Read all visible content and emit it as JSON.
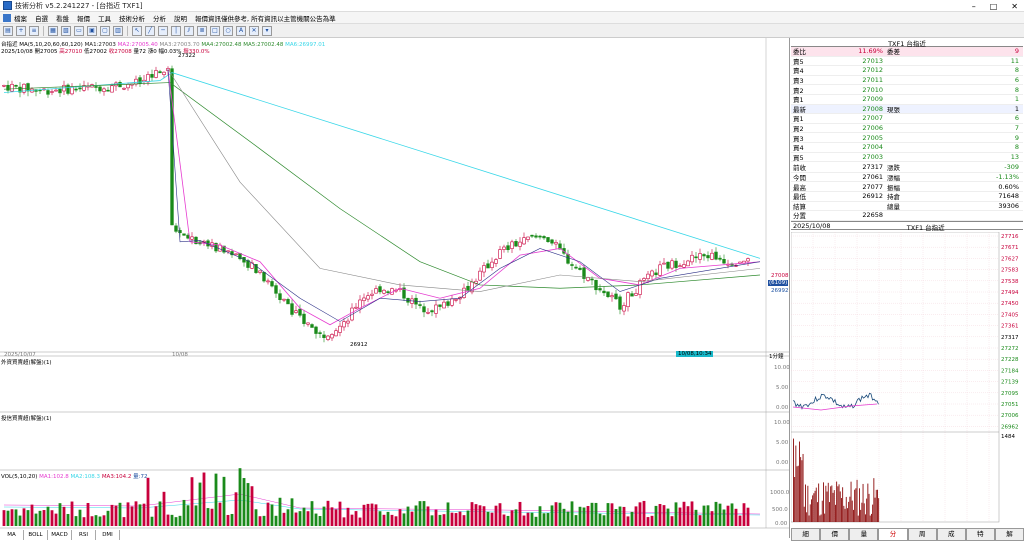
{
  "window": {
    "title": "技術分析 v5.2.241227 - [台指近 TXF1]"
  },
  "menu": [
    "檔案",
    "自選",
    "看盤",
    "報價",
    "工具",
    "技術分析",
    "分析",
    "說明",
    "報價資訊僅供參考, 所有資訊以主管機關公告為準"
  ],
  "main": {
    "ma_header": {
      "name": "台指近",
      "params": "MA(5,10,20,60,60,120)",
      "ma1": "MA1:27003",
      "ma2": "MA2:27005.40",
      "ma3": "MA3:27003.70",
      "ma4": "MA4:27002.48",
      "ma5": "MA5:27002.48",
      "ma6": "MA6:26997.01"
    },
    "ohlc": {
      "date": "2025/10/08",
      "open": "開27005",
      "high": "高27010",
      "low": "低27002",
      "close": "收27008",
      "vol": "量72",
      "change": "漲0",
      "pct": "幅0.03%",
      "amp": "振330.0%"
    },
    "price_max_label": "27322",
    "price_min_label": "26912",
    "last_price_tag": "27008",
    "last_price_diff": "(6109)",
    "last_price_low": "26992",
    "xaxis_left": "2025/10/07",
    "xaxis_mid": "10/08",
    "xaxis_cursor": "10/08,10:34",
    "interval": "1分鐘",
    "panel2_title": "外資買賣超(解盤)(1)",
    "panel2_ticks": [
      "10.00",
      "5.00",
      "0.00"
    ],
    "panel3_title": "投信買賣超(解盤)(1)",
    "panel3_ticks": [
      "10.00",
      "5.00",
      "0.00"
    ],
    "vol_header": {
      "name": "VOL(5,10,20)",
      "ma1": "MA1:102.8",
      "ma2": "MA2:108.3",
      "ma3": "MA3:104.2",
      "vol": "量:72"
    },
    "vol_ticks": [
      "1000.0",
      "500.0",
      "0.00"
    ],
    "tabs": [
      "MA",
      "BOLL",
      "MACD",
      "RSI",
      "DMI"
    ]
  },
  "quote": {
    "title": "TXF1 台指近",
    "ratio": {
      "label": "委比",
      "value": "11.69%",
      "label2": "委差",
      "value2": "9"
    },
    "asks": [
      {
        "label": "賣5",
        "price": "27013",
        "qty": "11"
      },
      {
        "label": "賣4",
        "price": "27012",
        "qty": "8"
      },
      {
        "label": "賣3",
        "price": "27011",
        "qty": "6"
      },
      {
        "label": "賣2",
        "price": "27010",
        "qty": "8"
      },
      {
        "label": "賣1",
        "price": "27009",
        "qty": "1"
      }
    ],
    "last": {
      "label": "最新",
      "price": "27008",
      "label2": "現張",
      "qty": "1"
    },
    "bids": [
      {
        "label": "買1",
        "price": "27007",
        "qty": "6"
      },
      {
        "label": "買2",
        "price": "27006",
        "qty": "7"
      },
      {
        "label": "買3",
        "price": "27005",
        "qty": "9"
      },
      {
        "label": "買4",
        "price": "27004",
        "qty": "8"
      },
      {
        "label": "買5",
        "price": "27003",
        "qty": "13"
      }
    ],
    "stats": [
      {
        "l": "前收",
        "v": "27317",
        "l2": "漲跌",
        "v2": "-309"
      },
      {
        "l": "今開",
        "v": "27061",
        "l2": "漲幅",
        "v2": "-1.13%"
      },
      {
        "l": "最高",
        "v": "27077",
        "l2": "振幅",
        "v2": "0.60%"
      },
      {
        "l": "最低",
        "v": "26912",
        "l2": "持倉",
        "v2": "71648"
      },
      {
        "l": "結算",
        "v": "",
        "l2": "總量",
        "v2": "39306"
      },
      {
        "l": "分置",
        "v": "22658",
        "l2": "",
        "v2": ""
      }
    ],
    "mini_title_date": "2025/10/08",
    "mini_title": "TXF1 台指近",
    "mini_ticks": [
      "27716",
      "27671",
      "27627",
      "27583",
      "27538",
      "27494",
      "27450",
      "27405",
      "27361",
      "27317",
      "27272",
      "27228",
      "27184",
      "27139",
      "27095",
      "27051",
      "27006",
      "26962"
    ],
    "mini_vol_tick": "1484"
  },
  "bottom_tabs": [
    "細",
    "價",
    "量",
    "分",
    "周",
    "成",
    "特",
    "解"
  ],
  "bottom_active": "分",
  "colors": {
    "up": "#c8003c",
    "down": "#1a8a1a",
    "cyan": "#39d7e8",
    "green": "#2e8a2e",
    "pink": "#e63bd0",
    "gray": "#888888",
    "navy": "#2b2f86"
  }
}
